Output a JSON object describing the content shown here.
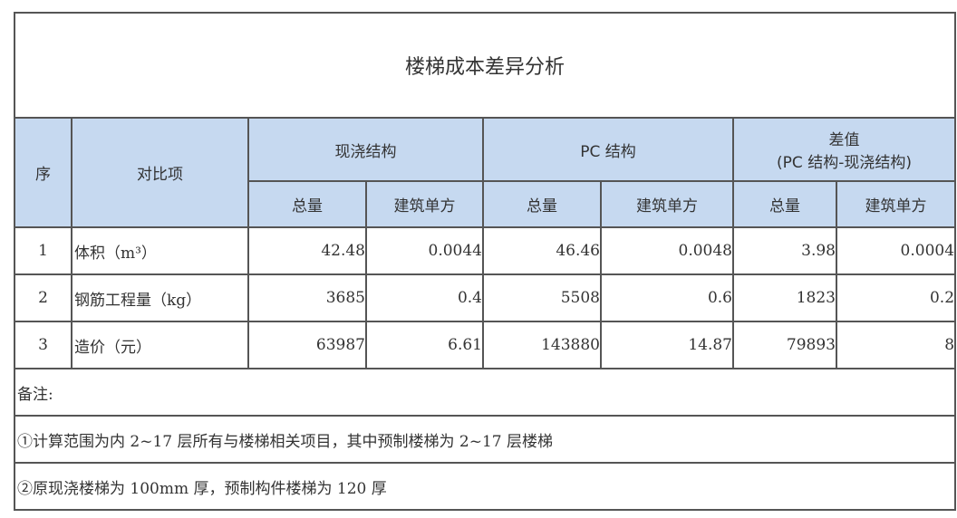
{
  "title": "楼梯成本差异分析",
  "header": {
    "index": "序",
    "item": "对比项",
    "cast_in_place": "现浇结构",
    "pc": "PC 结构",
    "diff_line1": "差值",
    "diff_line2": "(PC 结构-现浇结构)",
    "total": "总量",
    "per_area": "建筑单方"
  },
  "rows": [
    {
      "index": "1",
      "item": "体积（m³）",
      "cip_total": "42.48",
      "cip_per": "0.0044",
      "pc_total": "46.46",
      "pc_per": "0.0048",
      "diff_total": "3.98",
      "diff_per": "0.0004"
    },
    {
      "index": "2",
      "item": "钢筋工程量（kg）",
      "cip_total": "3685",
      "cip_per": "0.4",
      "pc_total": "5508",
      "pc_per": "0.6",
      "diff_total": "1823",
      "diff_per": "0.2"
    },
    {
      "index": "3",
      "item": "造价（元）",
      "cip_total": "63987",
      "cip_per": "6.61",
      "pc_total": "143880",
      "pc_per": "14.87",
      "diff_total": "79893",
      "diff_per": "8"
    }
  ],
  "notes": {
    "label": "备注:",
    "items": [
      "①计算范围为内 2~17 层所有与楼梯相关项目，其中预制楼梯为 2~17 层楼梯",
      "②原现浇楼梯为 100mm 厚，预制构件楼梯为 120 厚"
    ]
  },
  "colors": {
    "header_fill": "#c6d9f0",
    "border": "#555555"
  }
}
